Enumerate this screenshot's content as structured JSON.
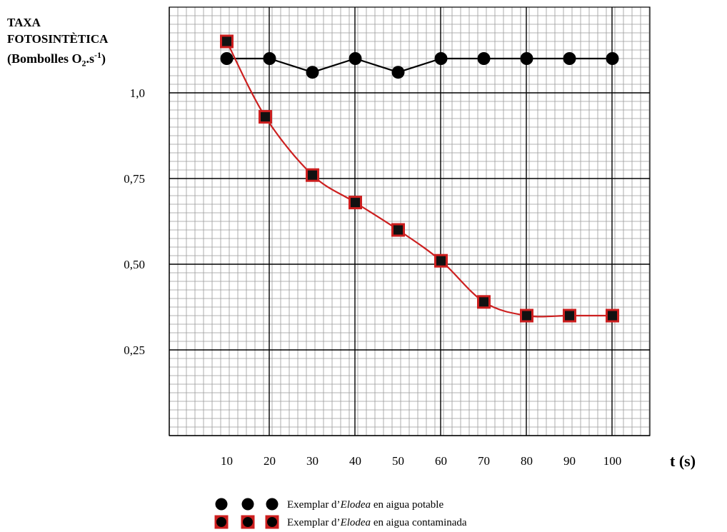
{
  "chart_data": {
    "type": "line",
    "ylabel": {
      "line1": "TAXA",
      "line2": "FOTOSINTÈTICA",
      "line3_prefix": "(Bombolles O",
      "line3_sub": "2",
      "line3_mid": ".s",
      "line3_sup": "-1",
      "line3_suffix": ")"
    },
    "xlabel": "t (s)",
    "x_ticks": [
      10,
      20,
      30,
      40,
      50,
      60,
      70,
      80,
      90,
      100
    ],
    "x_tick_labels": [
      "10",
      "20",
      "30",
      "40",
      "50",
      "60",
      "70",
      "80",
      "90",
      "100"
    ],
    "y_ticks": [
      0.25,
      0.5,
      0.75,
      1.0
    ],
    "y_tick_labels": [
      "0,25",
      "0,50",
      "0,75",
      "1,0"
    ],
    "xlim": [
      0,
      100
    ],
    "ylim": [
      0,
      1.25
    ],
    "grid": true,
    "legend_position": "bottom",
    "series": [
      {
        "name": "Exemplar d'Elodea en aigua potable",
        "legend_prefix": "Exemplar d’",
        "legend_italic": "Elodea",
        "legend_suffix": " en aigua potable",
        "marker": "circle",
        "color": "#000000",
        "x": [
          10,
          20,
          30,
          40,
          50,
          60,
          70,
          80,
          90,
          100
        ],
        "y": [
          1.1,
          1.1,
          1.06,
          1.1,
          1.06,
          1.1,
          1.1,
          1.1,
          1.1,
          1.1
        ]
      },
      {
        "name": "Exemplar d'Elodea en aigua contaminada",
        "legend_prefix": "Exemplar d’",
        "legend_italic": "Elodea",
        "legend_suffix": " en aigua contaminada",
        "marker": "square",
        "color": "#cc1f1f",
        "x": [
          10,
          19,
          30,
          40,
          50,
          60,
          70,
          80,
          90,
          100
        ],
        "y": [
          1.15,
          0.93,
          0.76,
          0.68,
          0.6,
          0.51,
          0.39,
          0.35,
          0.35,
          0.35
        ]
      }
    ]
  }
}
